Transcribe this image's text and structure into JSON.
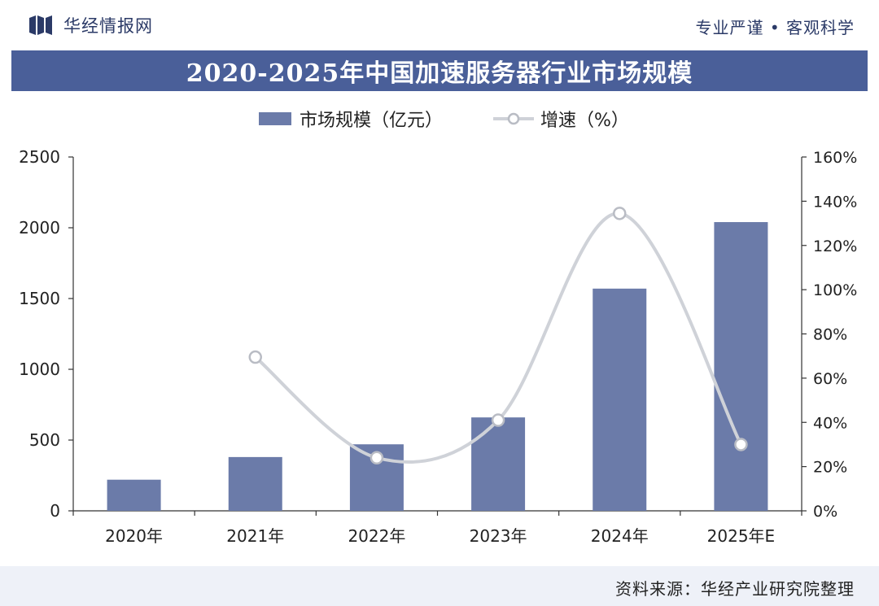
{
  "header": {
    "brand": "华经情报网",
    "tagline": "专业严谨 • 客观科学"
  },
  "footer": {
    "source": "资料来源：华经产业研究院整理"
  },
  "colors": {
    "bar": "#6b7ba9",
    "line": "#cfd2d8",
    "title_bg": "#4a5f99",
    "text": "#222222"
  },
  "chart_data": {
    "type": "bar",
    "title": "2020-2025年中国加速服务器行业市场规模",
    "categories": [
      "2020年",
      "2021年",
      "2022年",
      "2023年",
      "2024年",
      "2025年E"
    ],
    "series": [
      {
        "name": "市场规模（亿元）",
        "type": "bar",
        "axis": "left",
        "values": [
          220,
          380,
          470,
          660,
          1570,
          2040
        ]
      },
      {
        "name": "增速（%）",
        "type": "line",
        "axis": "right",
        "values": [
          null,
          69.5,
          24.0,
          41.0,
          134.5,
          30.0
        ]
      }
    ],
    "y_left": {
      "min": 0,
      "max": 2500,
      "ticks": [
        0,
        500,
        1000,
        1500,
        2000,
        2500
      ],
      "tick_labels": [
        "0",
        "500",
        "1000",
        "1500",
        "2000",
        "2500"
      ]
    },
    "y_right": {
      "min": 0,
      "max": 160,
      "ticks": [
        0,
        20,
        40,
        60,
        80,
        100,
        120,
        140,
        160
      ],
      "tick_labels": [
        "0%",
        "20%",
        "40%",
        "60%",
        "80%",
        "100%",
        "120%",
        "140%",
        "160%"
      ]
    },
    "legend_position": "top-center",
    "grid": false
  }
}
